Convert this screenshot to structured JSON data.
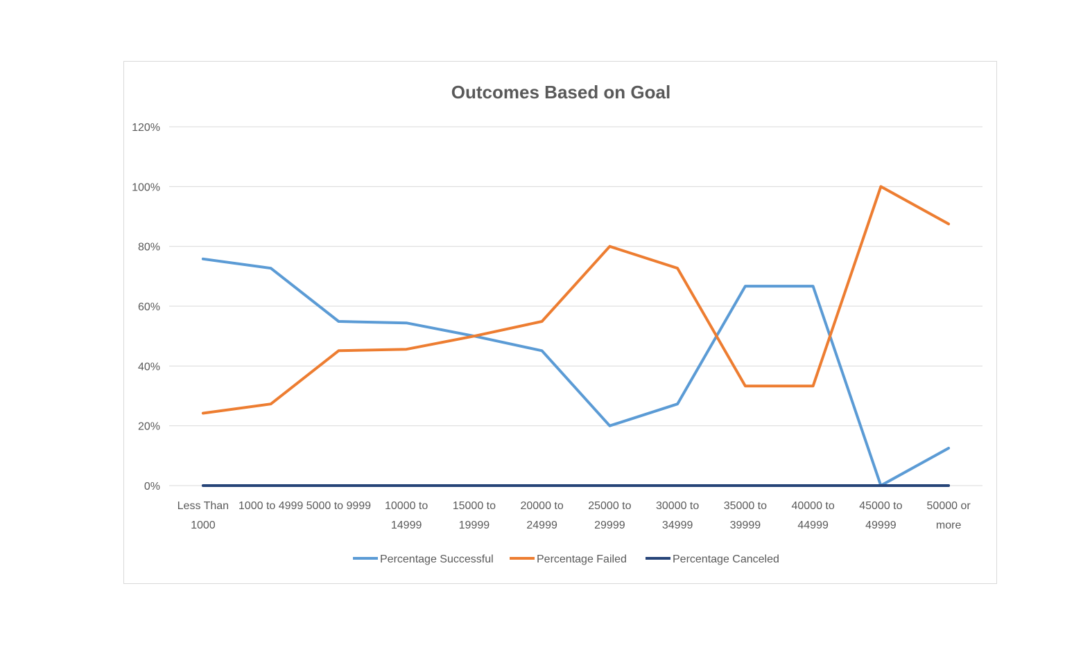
{
  "chart_data": {
    "type": "line",
    "title": "Outcomes Based on Goal",
    "xlabel": "",
    "ylabel": "",
    "categories": [
      [
        "Less Than",
        "1000"
      ],
      [
        "1000 to 4999"
      ],
      [
        "5000 to 9999"
      ],
      [
        "10000 to",
        "14999"
      ],
      [
        "15000 to",
        "19999"
      ],
      [
        "20000 to",
        "24999"
      ],
      [
        "25000 to",
        "29999"
      ],
      [
        "30000 to",
        "34999"
      ],
      [
        "35000 to",
        "39999"
      ],
      [
        "40000 to",
        "44999"
      ],
      [
        "45000 to",
        "49999"
      ],
      [
        "50000 or",
        "more"
      ]
    ],
    "yticks": [
      "0%",
      "20%",
      "40%",
      "60%",
      "80%",
      "100%",
      "120%"
    ],
    "ylim": [
      0,
      120
    ],
    "grid": true,
    "legend_position": "bottom",
    "series": [
      {
        "name": "Percentage Successful",
        "color": "#5b9bd5",
        "values": [
          75.8,
          72.7,
          54.9,
          54.4,
          50.0,
          45.1,
          20.0,
          27.3,
          66.7,
          66.7,
          0.0,
          12.5
        ]
      },
      {
        "name": "Percentage Failed",
        "color": "#ed7d31",
        "values": [
          24.2,
          27.3,
          45.1,
          45.6,
          50.0,
          54.9,
          80.0,
          72.7,
          33.3,
          33.3,
          100.0,
          87.5
        ]
      },
      {
        "name": "Percentage Canceled",
        "color": "#264478",
        "values": [
          0,
          0,
          0,
          0,
          0,
          0,
          0,
          0,
          0,
          0,
          0,
          0
        ]
      }
    ]
  }
}
